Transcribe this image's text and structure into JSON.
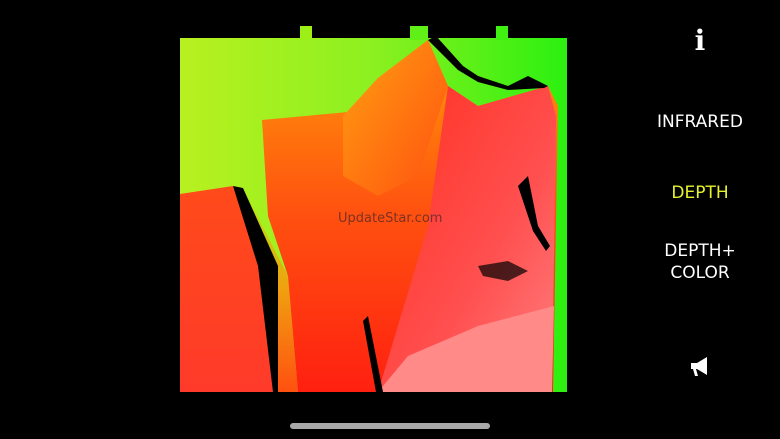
{
  "viewer": {
    "watermark": "UpdateStar.com",
    "active_mode": "DEPTH"
  },
  "sidebar": {
    "info_icon": "info-icon",
    "modes": [
      {
        "label": "INFRARED",
        "active": false
      },
      {
        "label": "DEPTH",
        "active": true
      },
      {
        "label": "DEPTH+\nCOLOR",
        "active": false
      }
    ],
    "speaker_icon": "megaphone-icon"
  },
  "colors": {
    "active": "#e6f22a",
    "inactive": "#ffffff",
    "background": "#000000"
  }
}
